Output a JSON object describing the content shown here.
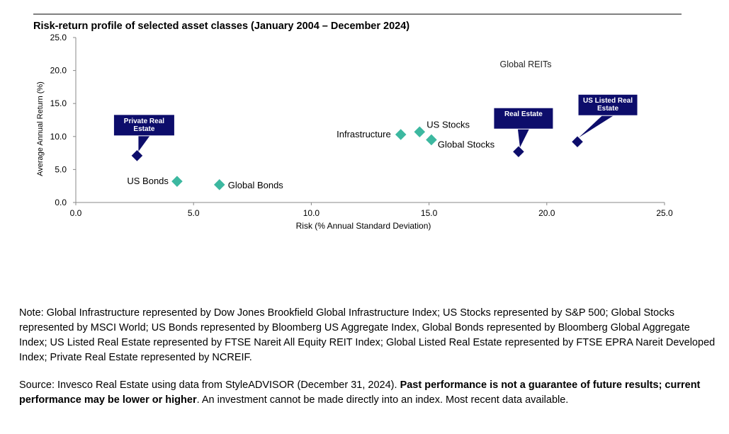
{
  "chart_data": {
    "type": "scatter",
    "title": "Risk-return profile of selected asset classes (January 2004 – December 2024)",
    "xlabel": "Risk (% Annual Standard Deviation)",
    "ylabel": "Average Annual Return (%)",
    "xlim": [
      0,
      25
    ],
    "ylim": [
      0,
      25
    ],
    "xticks": [
      {
        "value": 0,
        "label": "0.0"
      },
      {
        "value": 5,
        "label": "5.0"
      },
      {
        "value": 10,
        "label": "10.0"
      },
      {
        "value": 15,
        "label": "15.0"
      },
      {
        "value": 20,
        "label": "20.0"
      },
      {
        "value": 25,
        "label": "25.0"
      }
    ],
    "yticks": [
      {
        "value": 0,
        "label": "0.0"
      },
      {
        "value": 5,
        "label": "5.0"
      },
      {
        "value": 10,
        "label": "10.0"
      },
      {
        "value": 15,
        "label": "15.0"
      },
      {
        "value": 20,
        "label": "20.0"
      },
      {
        "value": 25,
        "label": "25.0"
      }
    ],
    "points": [
      {
        "name": "Private Real Estate",
        "x": 2.6,
        "y": 7.1,
        "color": "#0d0d6b",
        "style": "callout"
      },
      {
        "name": "US Bonds",
        "x": 4.3,
        "y": 3.2,
        "color": "#3cb8a0",
        "style": "label"
      },
      {
        "name": "Global Bonds",
        "x": 6.1,
        "y": 2.7,
        "color": "#3cb8a0",
        "style": "label"
      },
      {
        "name": "Infrastructure",
        "x": 13.8,
        "y": 10.3,
        "color": "#3cb8a0",
        "style": "label"
      },
      {
        "name": "US Stocks",
        "x": 14.6,
        "y": 10.7,
        "color": "#3cb8a0",
        "style": "label"
      },
      {
        "name": "Global Stocks",
        "x": 15.1,
        "y": 9.5,
        "color": "#3cb8a0",
        "style": "label"
      },
      {
        "name": "Real Estate",
        "x": 18.8,
        "y": 7.7,
        "color": "#0d0d6b",
        "style": "callout"
      },
      {
        "name": "US Listed Real Estate",
        "x": 21.3,
        "y": 9.2,
        "color": "#0d0d6b",
        "style": "callout"
      }
    ],
    "annotations": [
      "Global REITs"
    ]
  },
  "notes": {
    "note": "Note: Global Infrastructure represented by Dow Jones Brookfield Global Infrastructure Index; US Stocks represented by S&P 500; Global Stocks represented by MSCI World; US Bonds represented by Bloomberg US Aggregate Index, Global Bonds represented by Bloomberg Global Aggregate Index; US Listed Real Estate represented by FTSE Nareit All Equity REIT Index; Global Listed Real Estate represented by FTSE EPRA Nareit Developed Index; Private Real Estate represented by NCREIF.",
    "source": "Source: Invesco Real Estate using data from StyleADVISOR (December 31, 2024).",
    "warning": "Past performance is not a guarantee of future results; current performance may be lower or higher",
    "disclaimer": ". An investment cannot be made directly into an index. Most recent data available."
  }
}
